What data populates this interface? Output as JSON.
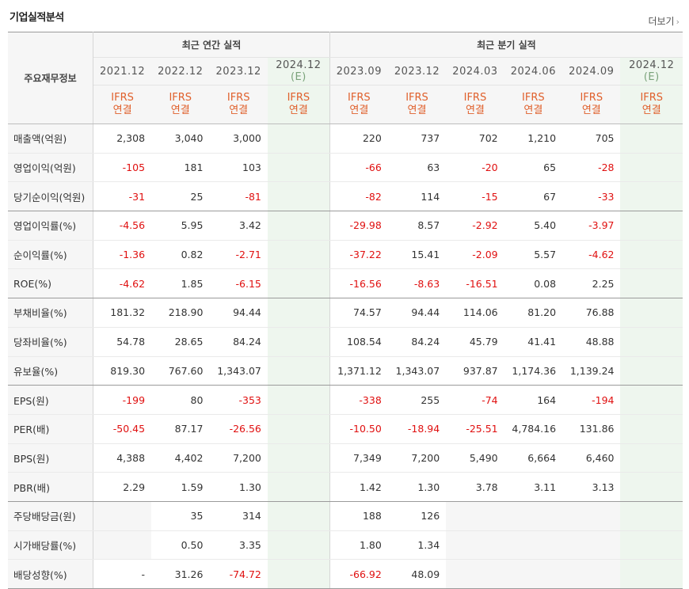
{
  "header": {
    "title": "기업실적분석",
    "more_label": "더보기"
  },
  "table": {
    "row_header_label": "주요재무정보",
    "group_annual": "최근 연간 실적",
    "group_quarter": "최근 분기 실적",
    "periods": [
      {
        "line1": "2021.12",
        "line2": ""
      },
      {
        "line1": "2022.12",
        "line2": ""
      },
      {
        "line1": "2023.12",
        "line2": ""
      },
      {
        "line1": "2024.12",
        "line2": "(E)"
      },
      {
        "line1": "2023.09",
        "line2": ""
      },
      {
        "line1": "2023.12",
        "line2": ""
      },
      {
        "line1": "2024.03",
        "line2": ""
      },
      {
        "line1": "2024.06",
        "line2": ""
      },
      {
        "line1": "2024.09",
        "line2": ""
      },
      {
        "line1": "2024.12",
        "line2": "(E)"
      }
    ],
    "standard_line1": "IFRS",
    "standard_line2": "연결",
    "rows": [
      {
        "label": "매출액(억원)",
        "values": [
          "2,308",
          "3,040",
          "3,000",
          "",
          "220",
          "737",
          "702",
          "1,210",
          "705",
          ""
        ]
      },
      {
        "label": "영업이익(억원)",
        "values": [
          "-105",
          "181",
          "103",
          "",
          "-66",
          "63",
          "-20",
          "65",
          "-28",
          ""
        ]
      },
      {
        "label": "당기순이익(억원)",
        "values": [
          "-31",
          "25",
          "-81",
          "",
          "-82",
          "114",
          "-15",
          "67",
          "-33",
          ""
        ]
      },
      {
        "label": "영업이익률(%)",
        "values": [
          "-4.56",
          "5.95",
          "3.42",
          "",
          "-29.98",
          "8.57",
          "-2.92",
          "5.40",
          "-3.97",
          ""
        ]
      },
      {
        "label": "순이익률(%)",
        "values": [
          "-1.36",
          "0.82",
          "-2.71",
          "",
          "-37.22",
          "15.41",
          "-2.09",
          "5.57",
          "-4.62",
          ""
        ]
      },
      {
        "label": "ROE(%)",
        "values": [
          "-4.62",
          "1.85",
          "-6.15",
          "",
          "-16.56",
          "-8.63",
          "-16.51",
          "0.08",
          "2.25",
          ""
        ]
      },
      {
        "label": "부채비율(%)",
        "values": [
          "181.32",
          "218.90",
          "94.44",
          "",
          "74.57",
          "94.44",
          "114.06",
          "81.20",
          "76.88",
          ""
        ]
      },
      {
        "label": "당좌비율(%)",
        "values": [
          "54.78",
          "28.65",
          "84.24",
          "",
          "108.54",
          "84.24",
          "45.79",
          "41.41",
          "48.88",
          ""
        ]
      },
      {
        "label": "유보율(%)",
        "values": [
          "819.30",
          "767.60",
          "1,343.07",
          "",
          "1,371.12",
          "1,343.07",
          "937.87",
          "1,174.36",
          "1,139.24",
          ""
        ]
      },
      {
        "label": "EPS(원)",
        "values": [
          "-199",
          "80",
          "-353",
          "",
          "-338",
          "255",
          "-74",
          "164",
          "-194",
          ""
        ]
      },
      {
        "label": "PER(배)",
        "values": [
          "-50.45",
          "87.17",
          "-26.56",
          "",
          "-10.50",
          "-18.94",
          "-25.51",
          "4,784.16",
          "131.86",
          ""
        ]
      },
      {
        "label": "BPS(원)",
        "values": [
          "4,388",
          "4,402",
          "7,200",
          "",
          "7,349",
          "7,200",
          "5,490",
          "6,664",
          "6,460",
          ""
        ]
      },
      {
        "label": "PBR(배)",
        "values": [
          "2.29",
          "1.59",
          "1.30",
          "",
          "1.42",
          "1.30",
          "3.78",
          "3.11",
          "3.13",
          ""
        ]
      },
      {
        "label": "주당배당금(원)",
        "values": [
          "",
          "35",
          "314",
          "",
          "188",
          "126",
          "",
          "",
          "",
          ""
        ]
      },
      {
        "label": "시가배당률(%)",
        "values": [
          "",
          "0.50",
          "3.35",
          "",
          "1.80",
          "1.34",
          "",
          "",
          "",
          ""
        ]
      },
      {
        "label": "배당성향(%)",
        "values": [
          "-",
          "31.26",
          "-74.72",
          "",
          "-66.92",
          "48.09",
          "",
          "",
          "",
          ""
        ]
      }
    ]
  }
}
